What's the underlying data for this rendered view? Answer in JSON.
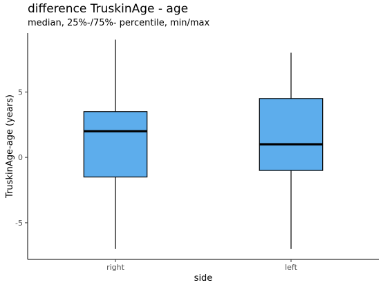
{
  "chart_data": {
    "type": "boxplot",
    "title": "difference TruskinAge - age",
    "subtitle": "median, 25%-/75%- percentile, min/max",
    "xlabel": "side",
    "ylabel": "TruskinAge-age (years)",
    "categories": [
      "right",
      "left"
    ],
    "ylim": [
      -7.8,
      9.5
    ],
    "yticks": [
      -5,
      0,
      5
    ],
    "grid": false,
    "box_color": "#5DADEC",
    "boxes": [
      {
        "category": "right",
        "min": -7,
        "q1": -1.5,
        "median": 2,
        "q3": 3.5,
        "max": 9
      },
      {
        "category": "left",
        "min": -7,
        "q1": -1,
        "median": 1,
        "q3": 4.5,
        "max": 8
      }
    ]
  }
}
